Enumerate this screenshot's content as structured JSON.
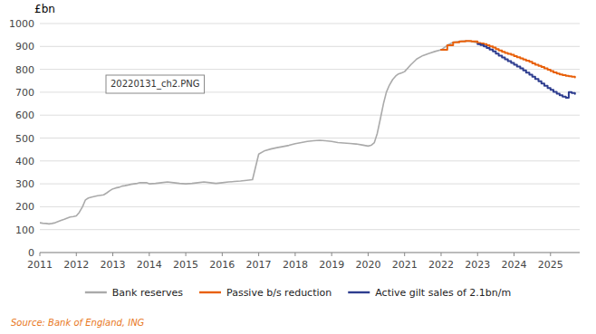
{
  "chart_data": {
    "type": "line",
    "y_label": "£bn",
    "annotations": [
      "20220131_ch2.PNG",
      "Source: Bank of England, ING"
    ],
    "xlim": [
      2011,
      2025.8
    ],
    "xticks": [
      2011,
      2012,
      2013,
      2014,
      2015,
      2016,
      2017,
      2018,
      2019,
      2020,
      2021,
      2022,
      2023,
      2024,
      2025
    ],
    "ylim": [
      0,
      1000
    ],
    "yticks": [
      0,
      100,
      200,
      300,
      400,
      500,
      600,
      700,
      800,
      900,
      1000
    ],
    "grid": true,
    "legend": "bottom",
    "series": [
      {
        "name": "Bank reserves",
        "type": "line",
        "color": "#aaaaaa",
        "x": [
          2011.0,
          2011.08,
          2011.17,
          2011.25,
          2011.33,
          2011.42,
          2011.5,
          2011.58,
          2011.67,
          2011.75,
          2011.83,
          2011.92,
          2012.0,
          2012.08,
          2012.17,
          2012.25,
          2012.33,
          2012.42,
          2012.5,
          2012.58,
          2012.67,
          2012.75,
          2012.83,
          2012.92,
          2013.0,
          2013.08,
          2013.17,
          2013.25,
          2013.33,
          2013.42,
          2013.5,
          2013.58,
          2013.67,
          2013.75,
          2013.83,
          2013.92,
          2014.0,
          2014.17,
          2014.33,
          2014.5,
          2014.67,
          2014.83,
          2015.0,
          2015.17,
          2015.33,
          2015.5,
          2015.67,
          2015.83,
          2016.0,
          2016.17,
          2016.33,
          2016.5,
          2016.67,
          2016.83,
          2017.0,
          2017.17,
          2017.33,
          2017.5,
          2017.67,
          2017.83,
          2018.0,
          2018.17,
          2018.33,
          2018.5,
          2018.67,
          2018.83,
          2019.0,
          2019.17,
          2019.33,
          2019.5,
          2019.67,
          2019.83,
          2020.0,
          2020.08,
          2020.17,
          2020.25,
          2020.33,
          2020.42,
          2020.5,
          2020.58,
          2020.67,
          2020.75,
          2020.83,
          2020.92,
          2021.0,
          2021.17,
          2021.33,
          2021.5,
          2021.67,
          2021.83,
          2022.0,
          2022.17,
          2022.33,
          2022.5,
          2022.67,
          2022.83,
          2023.0
        ],
        "values": [
          130,
          128,
          127,
          125,
          127,
          130,
          135,
          140,
          145,
          150,
          155,
          157,
          160,
          175,
          200,
          230,
          238,
          242,
          245,
          248,
          250,
          252,
          260,
          270,
          278,
          282,
          285,
          290,
          292,
          295,
          298,
          300,
          302,
          305,
          305,
          305,
          300,
          302,
          305,
          308,
          305,
          302,
          300,
          302,
          305,
          308,
          305,
          302,
          305,
          308,
          310,
          312,
          315,
          318,
          430,
          445,
          452,
          458,
          463,
          468,
          475,
          480,
          485,
          488,
          490,
          488,
          485,
          480,
          478,
          476,
          474,
          470,
          465,
          468,
          480,
          520,
          580,
          650,
          700,
          730,
          755,
          770,
          780,
          785,
          790,
          820,
          845,
          860,
          870,
          878,
          885,
          905,
          918,
          922,
          924,
          922,
          915
        ]
      },
      {
        "name": "Passive b/s reduction",
        "type": "step",
        "color": "#E8600A",
        "x": [
          2022.0,
          2022.17,
          2022.33,
          2022.5,
          2022.67,
          2022.83,
          2023.0,
          2023.08,
          2023.17,
          2023.25,
          2023.33,
          2023.42,
          2023.5,
          2023.58,
          2023.67,
          2023.75,
          2023.83,
          2023.92,
          2024.0,
          2024.08,
          2024.17,
          2024.25,
          2024.33,
          2024.42,
          2024.5,
          2024.58,
          2024.67,
          2024.75,
          2024.83,
          2024.92,
          2025.0,
          2025.08,
          2025.17,
          2025.25,
          2025.33,
          2025.42,
          2025.5,
          2025.58,
          2025.67
        ],
        "values": [
          885,
          905,
          918,
          922,
          924,
          922,
          915,
          913,
          910,
          905,
          900,
          895,
          888,
          882,
          876,
          872,
          868,
          864,
          858,
          853,
          848,
          843,
          838,
          833,
          826,
          820,
          815,
          810,
          804,
          798,
          792,
          787,
          782,
          778,
          775,
          772,
          770,
          768,
          765
        ]
      },
      {
        "name": "Active gilt sales of 2.1bn/m",
        "type": "step",
        "color": "#2E3D8F",
        "x": [
          2023.0,
          2023.08,
          2023.17,
          2023.25,
          2023.33,
          2023.42,
          2023.5,
          2023.58,
          2023.67,
          2023.75,
          2023.83,
          2023.92,
          2024.0,
          2024.08,
          2024.17,
          2024.25,
          2024.33,
          2024.42,
          2024.5,
          2024.58,
          2024.67,
          2024.75,
          2024.83,
          2024.92,
          2025.0,
          2025.08,
          2025.17,
          2025.25,
          2025.33,
          2025.42,
          2025.5,
          2025.58,
          2025.67
        ],
        "values": [
          910,
          906,
          900,
          893,
          886,
          878,
          869,
          860,
          852,
          844,
          836,
          828,
          820,
          812,
          804,
          795,
          786,
          777,
          768,
          758,
          748,
          738,
          728,
          718,
          710,
          702,
          694,
          687,
          681,
          676,
          701,
          697,
          693
        ]
      }
    ]
  }
}
